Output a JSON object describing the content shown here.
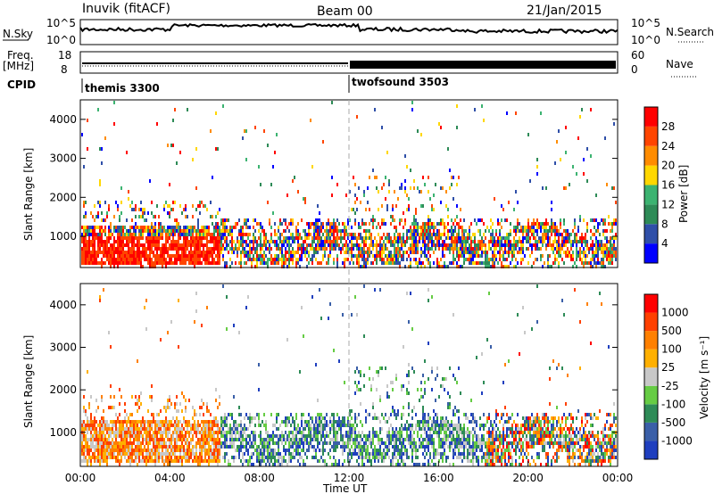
{
  "header": {
    "station": "Inuvik (fitACF)",
    "beam": "Beam 00",
    "date": "21/Jan/2015"
  },
  "panels": {
    "nsky_label": "N.Sky",
    "nsky_ticks": [
      "10^5",
      "10^0"
    ],
    "nsearch_label": "N.Search",
    "freq_label": "Freq.",
    "freq_unit": "[MHz]",
    "freq_ticks": [
      "18",
      "8"
    ],
    "nave_label": "Nave",
    "nave_ticks": [
      "60",
      "0"
    ],
    "cpid_label": "CPID",
    "cpid_segments": [
      "themis 3300",
      "twofsound 3503"
    ]
  },
  "chart_data": [
    {
      "type": "heatmap",
      "name": "Power",
      "ylabel": "Slant Range [km]",
      "ylim": [
        200,
        4500
      ],
      "yticks": [
        1000,
        2000,
        3000,
        4000
      ],
      "xlim": [
        0,
        24
      ],
      "colorbar_label": "Power [dB]",
      "colorbar_ticks": [
        "28",
        "24",
        "20",
        "16",
        "12",
        "8",
        "4"
      ],
      "colors": [
        "#0000ff",
        "#2f4fa8",
        "#2e8b57",
        "#3cb371",
        "#ffd700",
        "#ff8c00",
        "#ff4500",
        "#ff0000"
      ]
    },
    {
      "type": "heatmap",
      "name": "Velocity",
      "ylabel": "Slant Range [km]",
      "ylim": [
        200,
        4500
      ],
      "yticks": [
        1000,
        2000,
        3000,
        4000
      ],
      "xlim": [
        0,
        24
      ],
      "xlabel": "Time UT",
      "xticks": [
        "00:00",
        "04:00",
        "08:00",
        "12:00",
        "16:00",
        "20:00",
        "00:00"
      ],
      "colorbar_label": "Velocity [m s⁻¹]",
      "colorbar_ticks": [
        "1000",
        "500",
        "100",
        "25",
        "-25",
        "-100",
        "-500",
        "-1000"
      ],
      "colors": [
        "#1f3fbf",
        "#3a5fa8",
        "#2e8b57",
        "#66cc44",
        "#c8c8c8",
        "#ffb000",
        "#ff8000",
        "#ff4000",
        "#ff0000"
      ]
    }
  ]
}
